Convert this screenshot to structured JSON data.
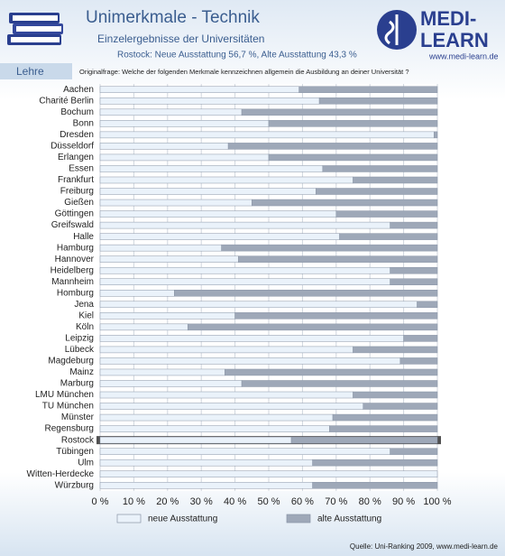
{
  "header": {
    "title": "Unimerkmale - Technik",
    "subtitle": "Einzelergebnisse der Universitäten",
    "detail": "Rostock: Neue Ausstattung 56,7 %, Alte Ausstattung 43,3 %",
    "logo_top": "MEDI-",
    "logo_bottom": "LEARN",
    "logo_url": "www.medi-learn.de",
    "section": "Lehre",
    "question": "Originalfrage: Welche der folgenden Merkmale kennzeichnen allgemein die Ausbildung an deiner Universität ?"
  },
  "chart_data": {
    "type": "stacked-bar-horizontal",
    "categories": [
      "Aachen",
      "Charité Berlin",
      "Bochum",
      "Bonn",
      "Dresden",
      "Düsseldorf",
      "Erlangen",
      "Essen",
      "Frankfurt",
      "Freiburg",
      "Gießen",
      "Göttingen",
      "Greifswald",
      "Halle",
      "Hamburg",
      "Hannover",
      "Heidelberg",
      "Mannheim",
      "Homburg",
      "Jena",
      "Kiel",
      "Köln",
      "Leipzig",
      "Lübeck",
      "Magdeburg",
      "Mainz",
      "Marburg",
      "LMU München",
      "TU München",
      "Münster",
      "Regensburg",
      "Rostock",
      "Tübingen",
      "Ulm",
      "Witten-Herdecke",
      "Würzburg"
    ],
    "series": [
      {
        "name": "neue Ausstattung",
        "color": "#eaf2fa",
        "values": [
          59,
          65,
          42,
          50,
          99,
          38,
          50,
          66,
          75,
          64,
          45,
          70,
          86,
          71,
          36,
          41,
          86,
          86,
          22,
          94,
          40,
          26,
          90,
          75,
          89,
          37,
          42,
          75,
          78,
          69,
          68,
          56.7,
          86,
          63,
          100,
          63
        ]
      },
      {
        "name": "alte Ausstattung",
        "color": "#9ea8b8",
        "values": [
          41,
          35,
          58,
          50,
          1,
          62,
          50,
          34,
          25,
          36,
          55,
          30,
          14,
          29,
          64,
          59,
          14,
          14,
          78,
          6,
          60,
          74,
          10,
          25,
          11,
          63,
          58,
          25,
          22,
          31,
          32,
          43.3,
          14,
          37,
          0,
          37
        ]
      }
    ],
    "xlim": [
      0,
      100
    ],
    "xticks": [
      {
        "value": 0,
        "label": "0 %"
      },
      {
        "value": 10,
        "label": "10 %"
      },
      {
        "value": 20,
        "label": "20 %"
      },
      {
        "value": 30,
        "label": "30 %"
      },
      {
        "value": 40,
        "label": "40 %"
      },
      {
        "value": 50,
        "label": "50 %"
      },
      {
        "value": 60,
        "label": "60 %"
      },
      {
        "value": 70,
        "label": "70 %"
      },
      {
        "value": 80,
        "label": "80 %"
      },
      {
        "value": 90,
        "label": "90 %"
      },
      {
        "value": 100,
        "label": "100 %"
      }
    ],
    "grid": true,
    "highlight": 31
  },
  "footer": {
    "source": "Quelle: Uni-Ranking 2009, www.medi-learn.de"
  }
}
